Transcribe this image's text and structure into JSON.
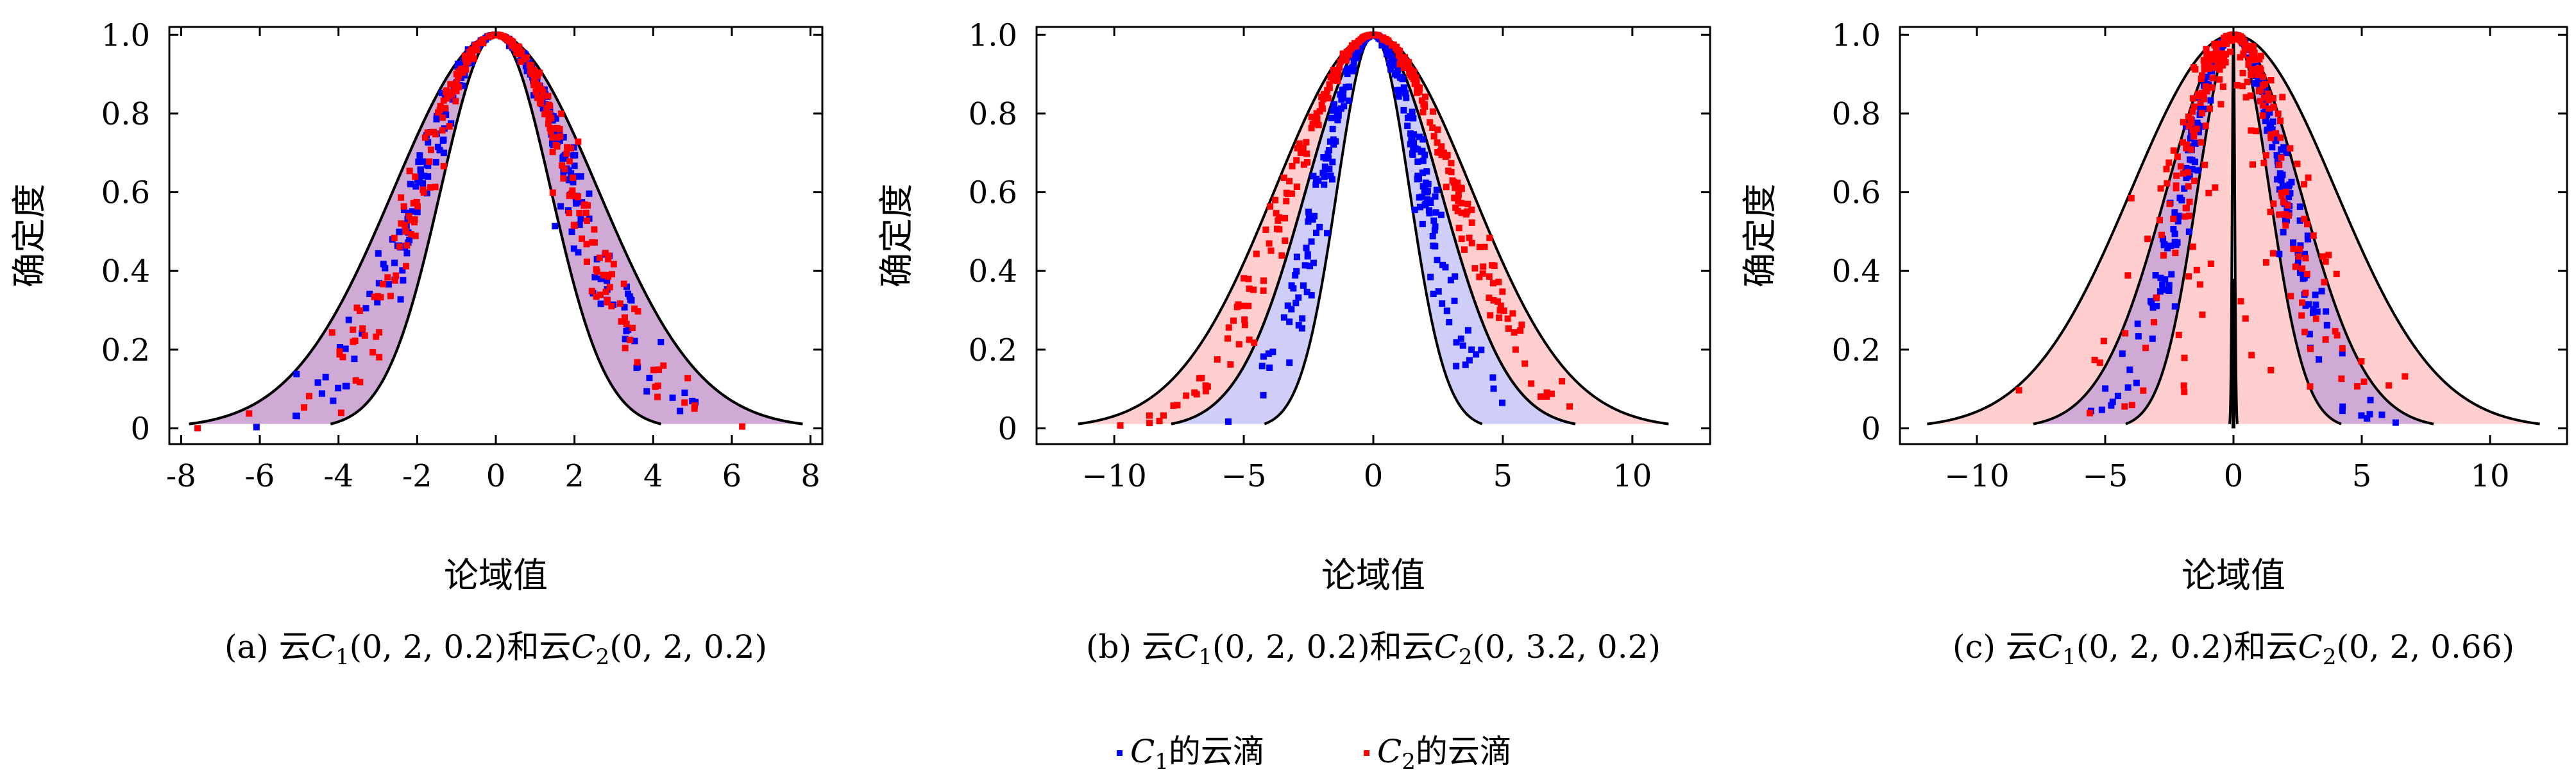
{
  "chart_data": [
    {
      "type": "scatter",
      "panel": "a",
      "caption": {
        "prefix": "(a) 云",
        "c1": "C",
        "c1sub": "1",
        "c1args": "(0, 2, 0.2)和云",
        "c2": "C",
        "c2sub": "2",
        "c2args": "(0, 2, 0.2)"
      },
      "xlabel": "论域值",
      "ylabel": "确定度",
      "xlim": [
        -8.3,
        8.3
      ],
      "ylim": [
        -0.04,
        1.02
      ],
      "xticks": [
        -8,
        -6,
        -4,
        -2,
        0,
        2,
        4,
        6,
        8
      ],
      "xtick_labels": [
        "-8",
        "-6",
        "-4",
        "-2",
        "0",
        "2",
        "4",
        "6",
        "8"
      ],
      "yticks": [
        0,
        0.2,
        0.4,
        0.6,
        0.8,
        1.0
      ],
      "ytick_labels": [
        "0",
        "0.2",
        "0.4",
        "0.6",
        "0.8",
        "1.0"
      ],
      "series": [
        {
          "name": "C1的云滴",
          "color": "#0000ff",
          "Ex": 0,
          "En": 2,
          "He": 0.2,
          "drops": 300
        },
        {
          "name": "C2的云滴",
          "color": "#ff0000",
          "Ex": 0,
          "En": 2,
          "He": 0.2,
          "drops": 300
        }
      ]
    },
    {
      "type": "scatter",
      "panel": "b",
      "caption": {
        "prefix": "(b) 云",
        "c1": "C",
        "c1sub": "1",
        "c1args": "(0, 2, 0.2)和云",
        "c2": "C",
        "c2sub": "2",
        "c2args": "(0, 3.2, 0.2)"
      },
      "xlabel": "论域值",
      "ylabel": "确定度",
      "xlim": [
        -13,
        13
      ],
      "ylim": [
        -0.04,
        1.02
      ],
      "xticks": [
        -10,
        -5,
        0,
        5,
        10
      ],
      "xtick_labels": [
        "−10",
        "−5",
        "0",
        "5",
        "10"
      ],
      "yticks": [
        0,
        0.2,
        0.4,
        0.6,
        0.8,
        1.0
      ],
      "ytick_labels": [
        "0",
        "0.2",
        "0.4",
        "0.6",
        "0.8",
        "1.0"
      ],
      "series": [
        {
          "name": "C1的云滴",
          "color": "#0000ff",
          "Ex": 0,
          "En": 2,
          "He": 0.2,
          "drops": 300
        },
        {
          "name": "C2的云滴",
          "color": "#ff0000",
          "Ex": 0,
          "En": 3.2,
          "He": 0.2,
          "drops": 300
        }
      ]
    },
    {
      "type": "scatter",
      "panel": "c",
      "caption": {
        "prefix": "(c) 云",
        "c1": "C",
        "c1sub": "1",
        "c1args": "(0, 2, 0.2)和云",
        "c2": "C",
        "c2sub": "2",
        "c2args": "(0, 2, 0.66)"
      },
      "xlabel": "论域值",
      "ylabel": "确定度",
      "xlim": [
        -13,
        13
      ],
      "ylim": [
        -0.04,
        1.02
      ],
      "xticks": [
        -10,
        -5,
        0,
        5,
        10
      ],
      "xtick_labels": [
        "−10",
        "−5",
        "0",
        "5",
        "10"
      ],
      "yticks": [
        0,
        0.2,
        0.4,
        0.6,
        0.8,
        1.0
      ],
      "ytick_labels": [
        "0",
        "0.2",
        "0.4",
        "0.6",
        "0.8",
        "1.0"
      ],
      "series": [
        {
          "name": "C1的云滴",
          "color": "#0000ff",
          "Ex": 0,
          "En": 2,
          "He": 0.2,
          "drops": 300
        },
        {
          "name": "C2的云滴",
          "color": "#ff0000",
          "Ex": 0,
          "En": 2,
          "He": 0.66,
          "drops": 300
        }
      ]
    }
  ],
  "legend": {
    "items": [
      {
        "prefix": "C",
        "sub": "1",
        "suffix": "的云滴",
        "color": "#0000ff"
      },
      {
        "prefix": "C",
        "sub": "2",
        "suffix": "的云滴",
        "color": "#ff0000"
      }
    ]
  }
}
